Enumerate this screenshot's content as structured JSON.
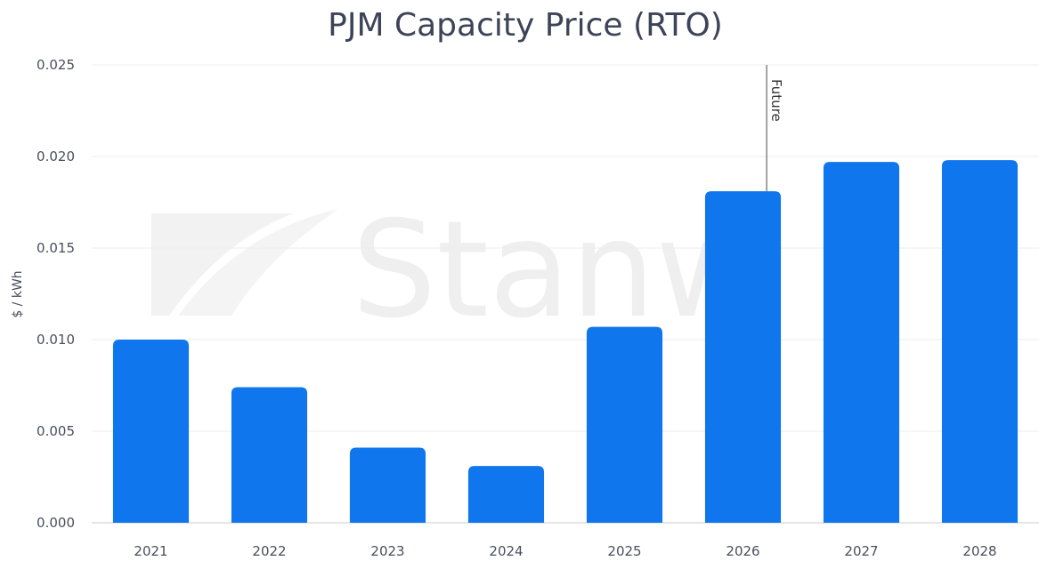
{
  "chart_data": {
    "type": "bar",
    "title": "PJM Capacity Price (RTO)",
    "xlabel": "",
    "ylabel": "$ / kWh",
    "categories": [
      "2021",
      "2022",
      "2023",
      "2024",
      "2025",
      "2026",
      "2027",
      "2028"
    ],
    "values": [
      0.01,
      0.0074,
      0.0041,
      0.0031,
      0.0107,
      0.0181,
      0.0197,
      0.0198
    ],
    "ylim": [
      0,
      0.025
    ],
    "yticks": [
      "0.000",
      "0.005",
      "0.010",
      "0.015",
      "0.020",
      "0.025"
    ],
    "grid": true,
    "annotation": {
      "text": "Future",
      "category_index": 5.2
    },
    "watermark": "Stanw",
    "colors": {
      "bar": "#1076ed",
      "grid": "#eeeeee",
      "axis": "#cccccc",
      "annotation_line": "#666666"
    }
  }
}
